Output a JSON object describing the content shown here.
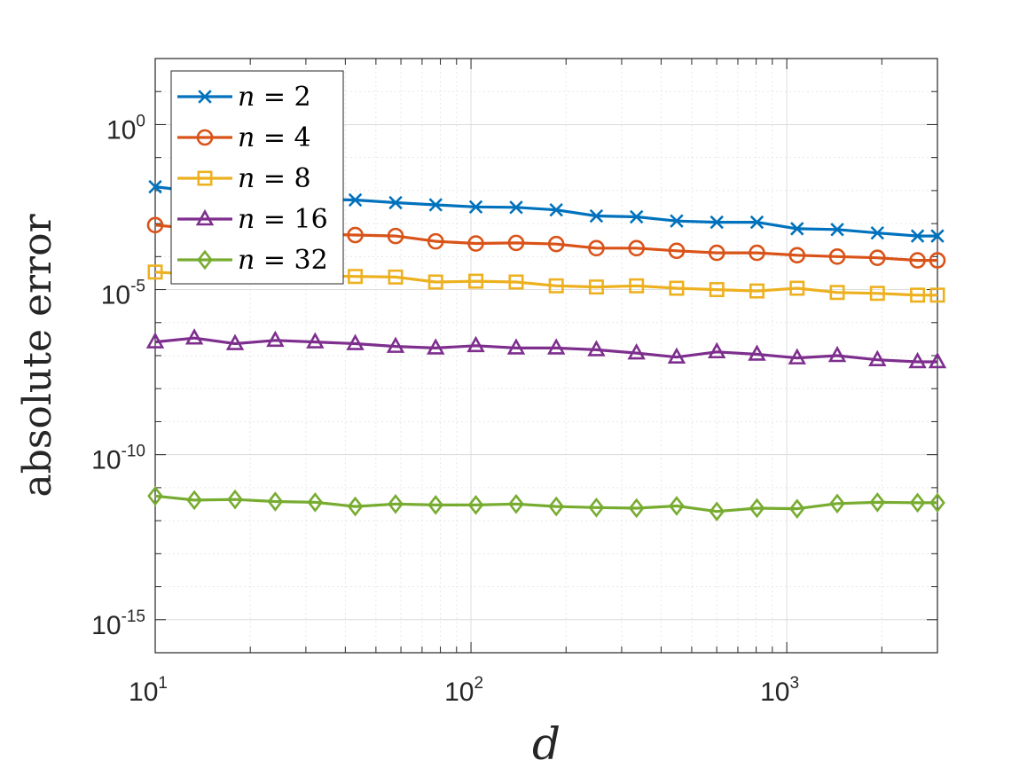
{
  "chart_data": {
    "type": "line",
    "title": "",
    "xlabel": "d",
    "ylabel": "absolute error",
    "xscale": "log",
    "yscale": "log",
    "xlim": [
      10,
      3000
    ],
    "ylim": [
      1e-16,
      100.0
    ],
    "grid": true,
    "legend_position": "top-left",
    "x_ticks": [
      {
        "base": "10",
        "exp": "1",
        "value": 10
      },
      {
        "base": "10",
        "exp": "2",
        "value": 100
      },
      {
        "base": "10",
        "exp": "3",
        "value": 1000
      }
    ],
    "y_ticks": [
      {
        "base": "10",
        "exp": "0",
        "value": 1
      },
      {
        "base": "10",
        "exp": "-5",
        "value": 1e-05
      },
      {
        "base": "10",
        "exp": "-10",
        "value": 1e-10
      },
      {
        "base": "10",
        "exp": "-15",
        "value": 1e-15
      }
    ],
    "x": [
      10,
      13.3,
      17.9,
      24,
      32.1,
      43,
      57.7,
      77.3,
      103.6,
      139,
      186.2,
      249.5,
      334.3,
      448,
      600.4,
      804.6,
      1078.2,
      1444.9,
      1936.3,
      2594.9,
      3000
    ],
    "series": [
      {
        "name": "n = 2",
        "n": "2",
        "color": "#0072BD",
        "marker": "x",
        "values": [
          0.013,
          0.0095,
          0.008,
          0.0068,
          0.0055,
          0.0052,
          0.0043,
          0.0037,
          0.0032,
          0.0031,
          0.0026,
          0.0017,
          0.0016,
          0.0012,
          0.0011,
          0.0011,
          0.0007,
          0.00066,
          0.00052,
          0.00042,
          0.00042
        ]
      },
      {
        "name": "n = 4",
        "n": "4",
        "color": "#D95319",
        "marker": "o",
        "values": [
          0.0009,
          0.0007,
          0.0006,
          0.00052,
          0.00048,
          0.00045,
          0.00042,
          0.00029,
          0.00025,
          0.00026,
          0.00024,
          0.00018,
          0.00018,
          0.00015,
          0.00013,
          0.00013,
          0.00011,
          0.0001,
          9.2e-05,
          7.7e-05,
          7.7e-05
        ]
      },
      {
        "name": "n = 8",
        "n": "8",
        "color": "#EDB120",
        "marker": "square",
        "values": [
          3.4e-05,
          2.9e-05,
          2.8e-05,
          2.7e-05,
          2.6e-05,
          2.5e-05,
          2.4e-05,
          1.7e-05,
          1.8e-05,
          1.7e-05,
          1.3e-05,
          1.2e-05,
          1.3e-05,
          1.1e-05,
          1e-05,
          9.1e-06,
          1.1e-05,
          8.2e-06,
          7.7e-06,
          6.8e-06,
          6.8e-06
        ]
      },
      {
        "name": "n = 16",
        "n": "16",
        "color": "#7E2F8E",
        "marker": "triangle",
        "values": [
          2.6e-07,
          3.4e-07,
          2.3e-07,
          2.9e-07,
          2.6e-07,
          2.3e-07,
          1.9e-07,
          1.7e-07,
          2e-07,
          1.7e-07,
          1.7e-07,
          1.5e-07,
          1.2e-07,
          9e-08,
          1.3e-07,
          1.1e-07,
          8.5e-08,
          1e-07,
          7.5e-08,
          6.5e-08,
          6.5e-08
        ]
      },
      {
        "name": "n = 32",
        "n": "32",
        "color": "#77AC30",
        "marker": "diamond",
        "values": [
          5.6e-12,
          4.2e-12,
          4.4e-12,
          3.8e-12,
          3.6e-12,
          2.7e-12,
          3.2e-12,
          3e-12,
          3e-12,
          3.2e-12,
          2.7e-12,
          2.5e-12,
          2.4e-12,
          2.8e-12,
          1.9e-12,
          2.4e-12,
          2.3e-12,
          3.3e-12,
          3.6e-12,
          3.5e-12,
          3.5e-12
        ]
      }
    ]
  }
}
